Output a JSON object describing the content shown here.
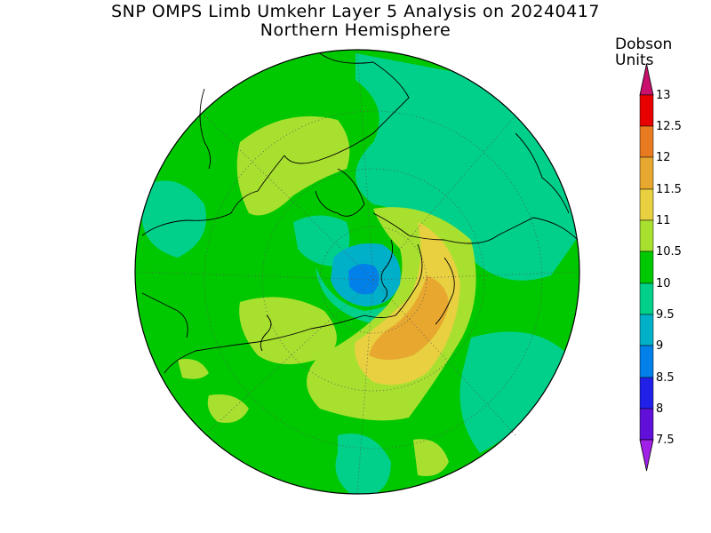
{
  "title": "SNP OMPS Limb Umkehr Layer 5 Analysis on 20240417",
  "subtitle": "Northern Hemisphere",
  "colorbar": {
    "unit_line1": "Dobson",
    "unit_line2": "Units",
    "levels": [
      "13",
      "12.5",
      "12",
      "11.5",
      "11",
      "10.5",
      "10",
      "9.5",
      "9",
      "8.5",
      "8",
      "7.5"
    ],
    "colors_top_to_bottom": [
      "#c8106c",
      "#e80000",
      "#e87a20",
      "#e8a830",
      "#e8d040",
      "#a8e030",
      "#00c800",
      "#00d08a",
      "#00b0c8",
      "#0080e8",
      "#2020e8",
      "#6010d8",
      "#a020e8"
    ]
  },
  "map_colors": {
    "background": "#00c800",
    "teal": "#00d08a",
    "lightgreen": "#a8e030",
    "yellow": "#e8d040",
    "orange": "#e8a830",
    "cyan": "#00b0c8",
    "blue": "#0080e8"
  }
}
